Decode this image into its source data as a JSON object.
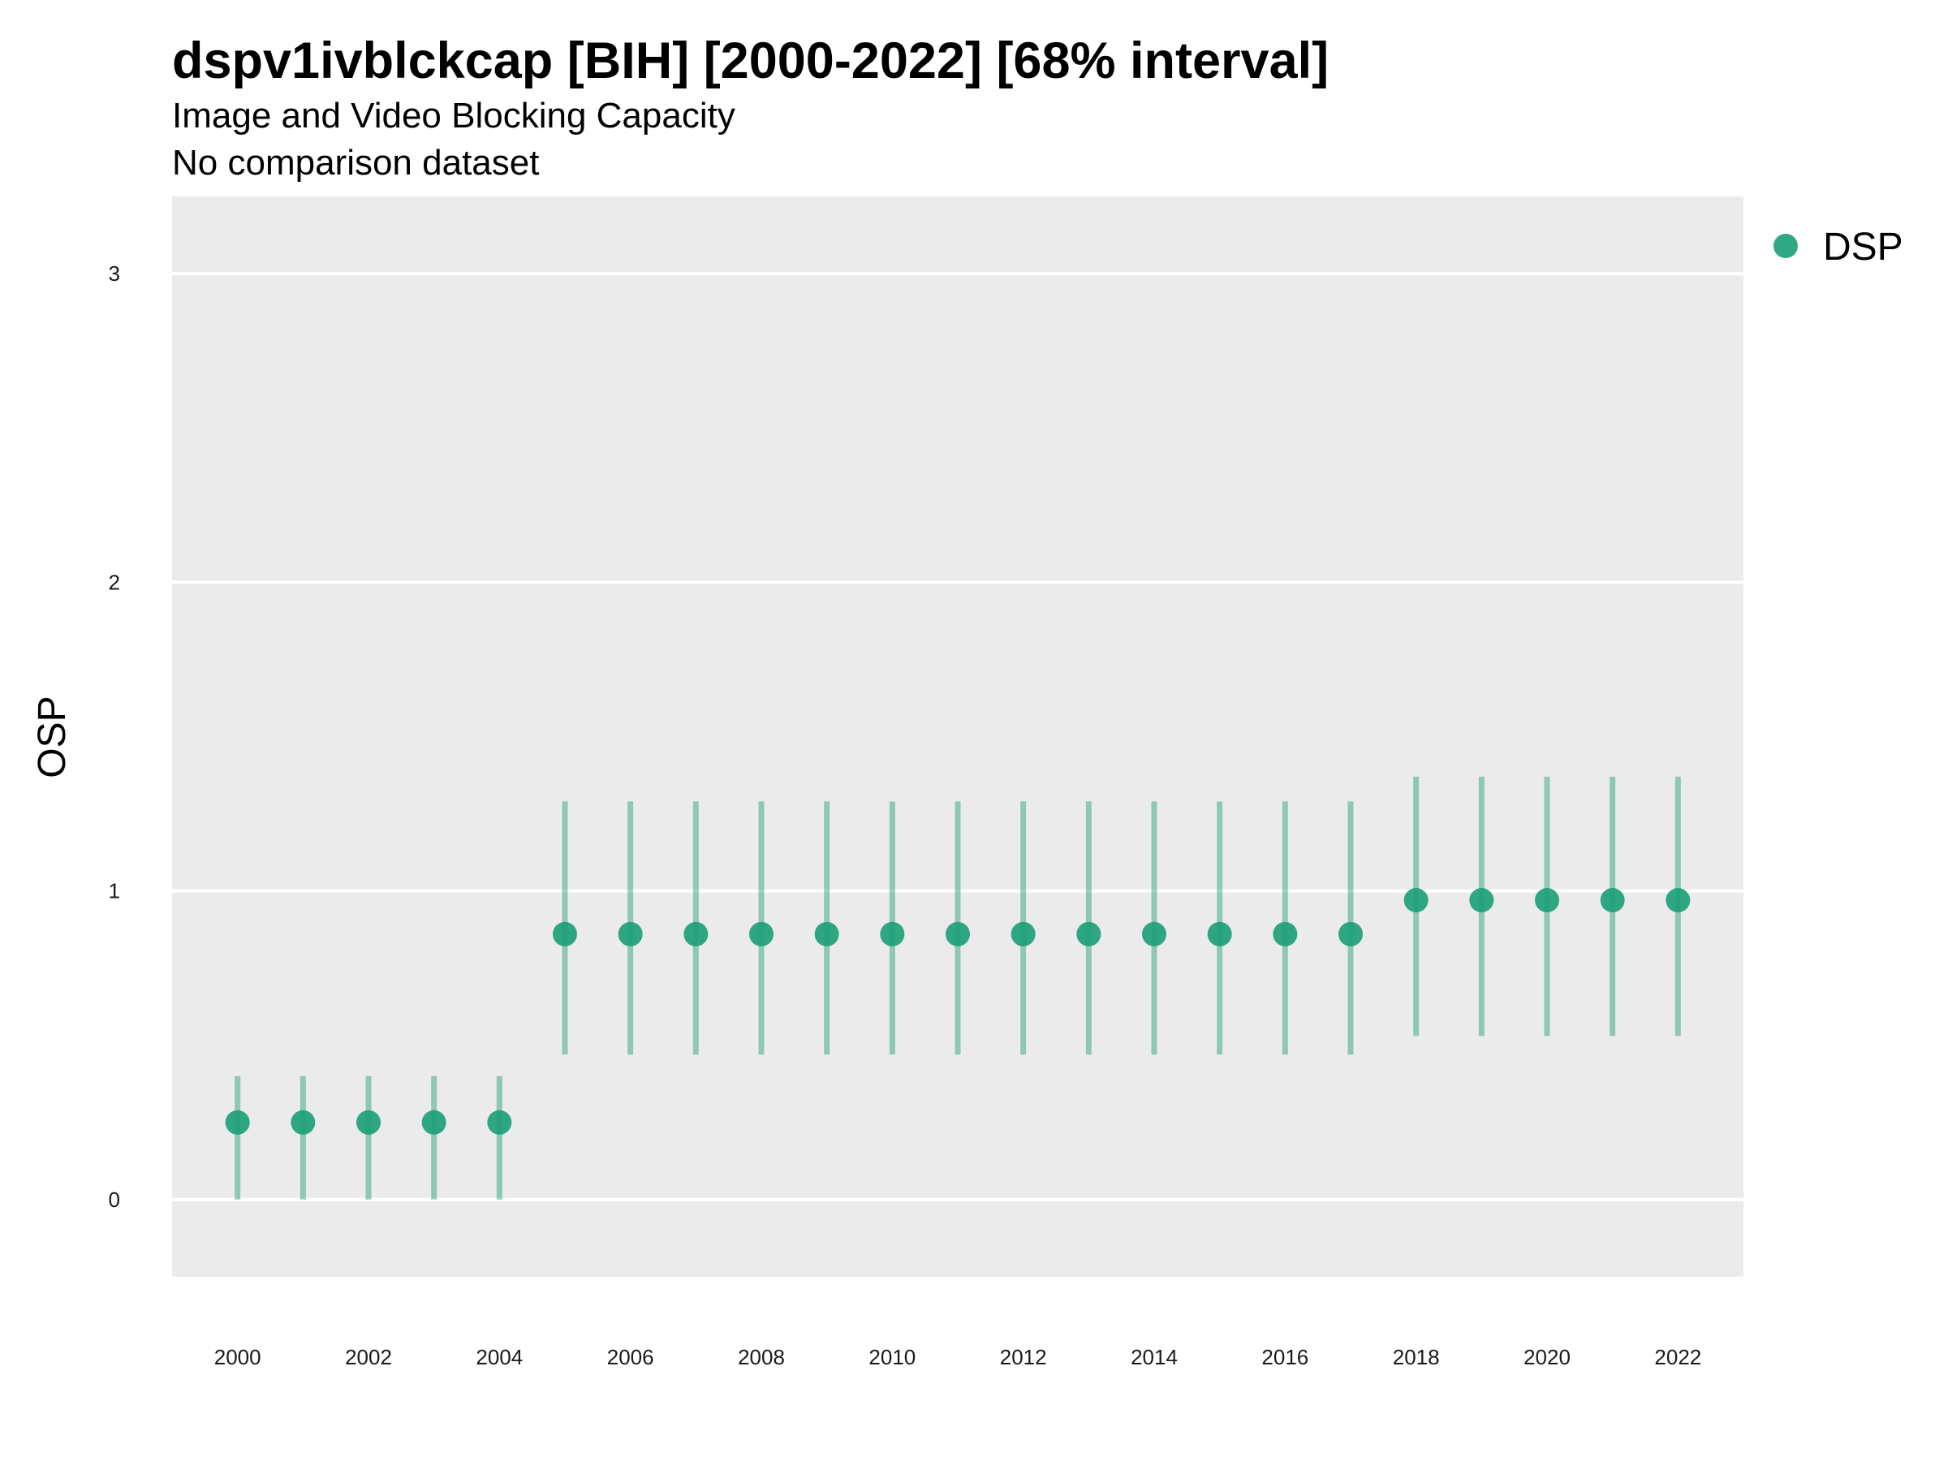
{
  "chart_data": {
    "type": "scatter",
    "title": "dspv1ivblckcap [BIH] [2000-2022] [68% interval]",
    "subtitle": "Image and Video Blocking Capacity",
    "caption": "No comparison dataset",
    "ylabel": "OSP",
    "xlabel": "",
    "xlim": [
      1999.0,
      2023.0
    ],
    "ylim": [
      -0.25,
      3.25
    ],
    "x_ticks": [
      2000,
      2002,
      2004,
      2006,
      2008,
      2010,
      2012,
      2014,
      2016,
      2018,
      2020,
      2022
    ],
    "y_ticks": [
      0,
      1,
      2,
      3
    ],
    "grid": true,
    "legend_position": "top-right",
    "series": [
      {
        "name": "DSP",
        "color": "#1b9e77",
        "x": [
          2000,
          2001,
          2002,
          2003,
          2004,
          2005,
          2006,
          2007,
          2008,
          2009,
          2010,
          2011,
          2012,
          2013,
          2014,
          2015,
          2016,
          2017,
          2018,
          2019,
          2020,
          2021,
          2022
        ],
        "y": [
          0.25,
          0.25,
          0.25,
          0.25,
          0.25,
          0.86,
          0.86,
          0.86,
          0.86,
          0.86,
          0.86,
          0.86,
          0.86,
          0.86,
          0.86,
          0.86,
          0.86,
          0.86,
          0.97,
          0.97,
          0.97,
          0.97,
          0.97
        ],
        "lower": [
          0.0,
          0.0,
          0.0,
          0.0,
          0.0,
          0.47,
          0.47,
          0.47,
          0.47,
          0.47,
          0.47,
          0.47,
          0.47,
          0.47,
          0.47,
          0.47,
          0.47,
          0.47,
          0.53,
          0.53,
          0.53,
          0.53,
          0.53
        ],
        "upper": [
          0.4,
          0.4,
          0.4,
          0.4,
          0.4,
          1.29,
          1.29,
          1.29,
          1.29,
          1.29,
          1.29,
          1.29,
          1.29,
          1.29,
          1.29,
          1.29,
          1.29,
          1.29,
          1.37,
          1.37,
          1.37,
          1.37,
          1.37
        ]
      }
    ]
  }
}
